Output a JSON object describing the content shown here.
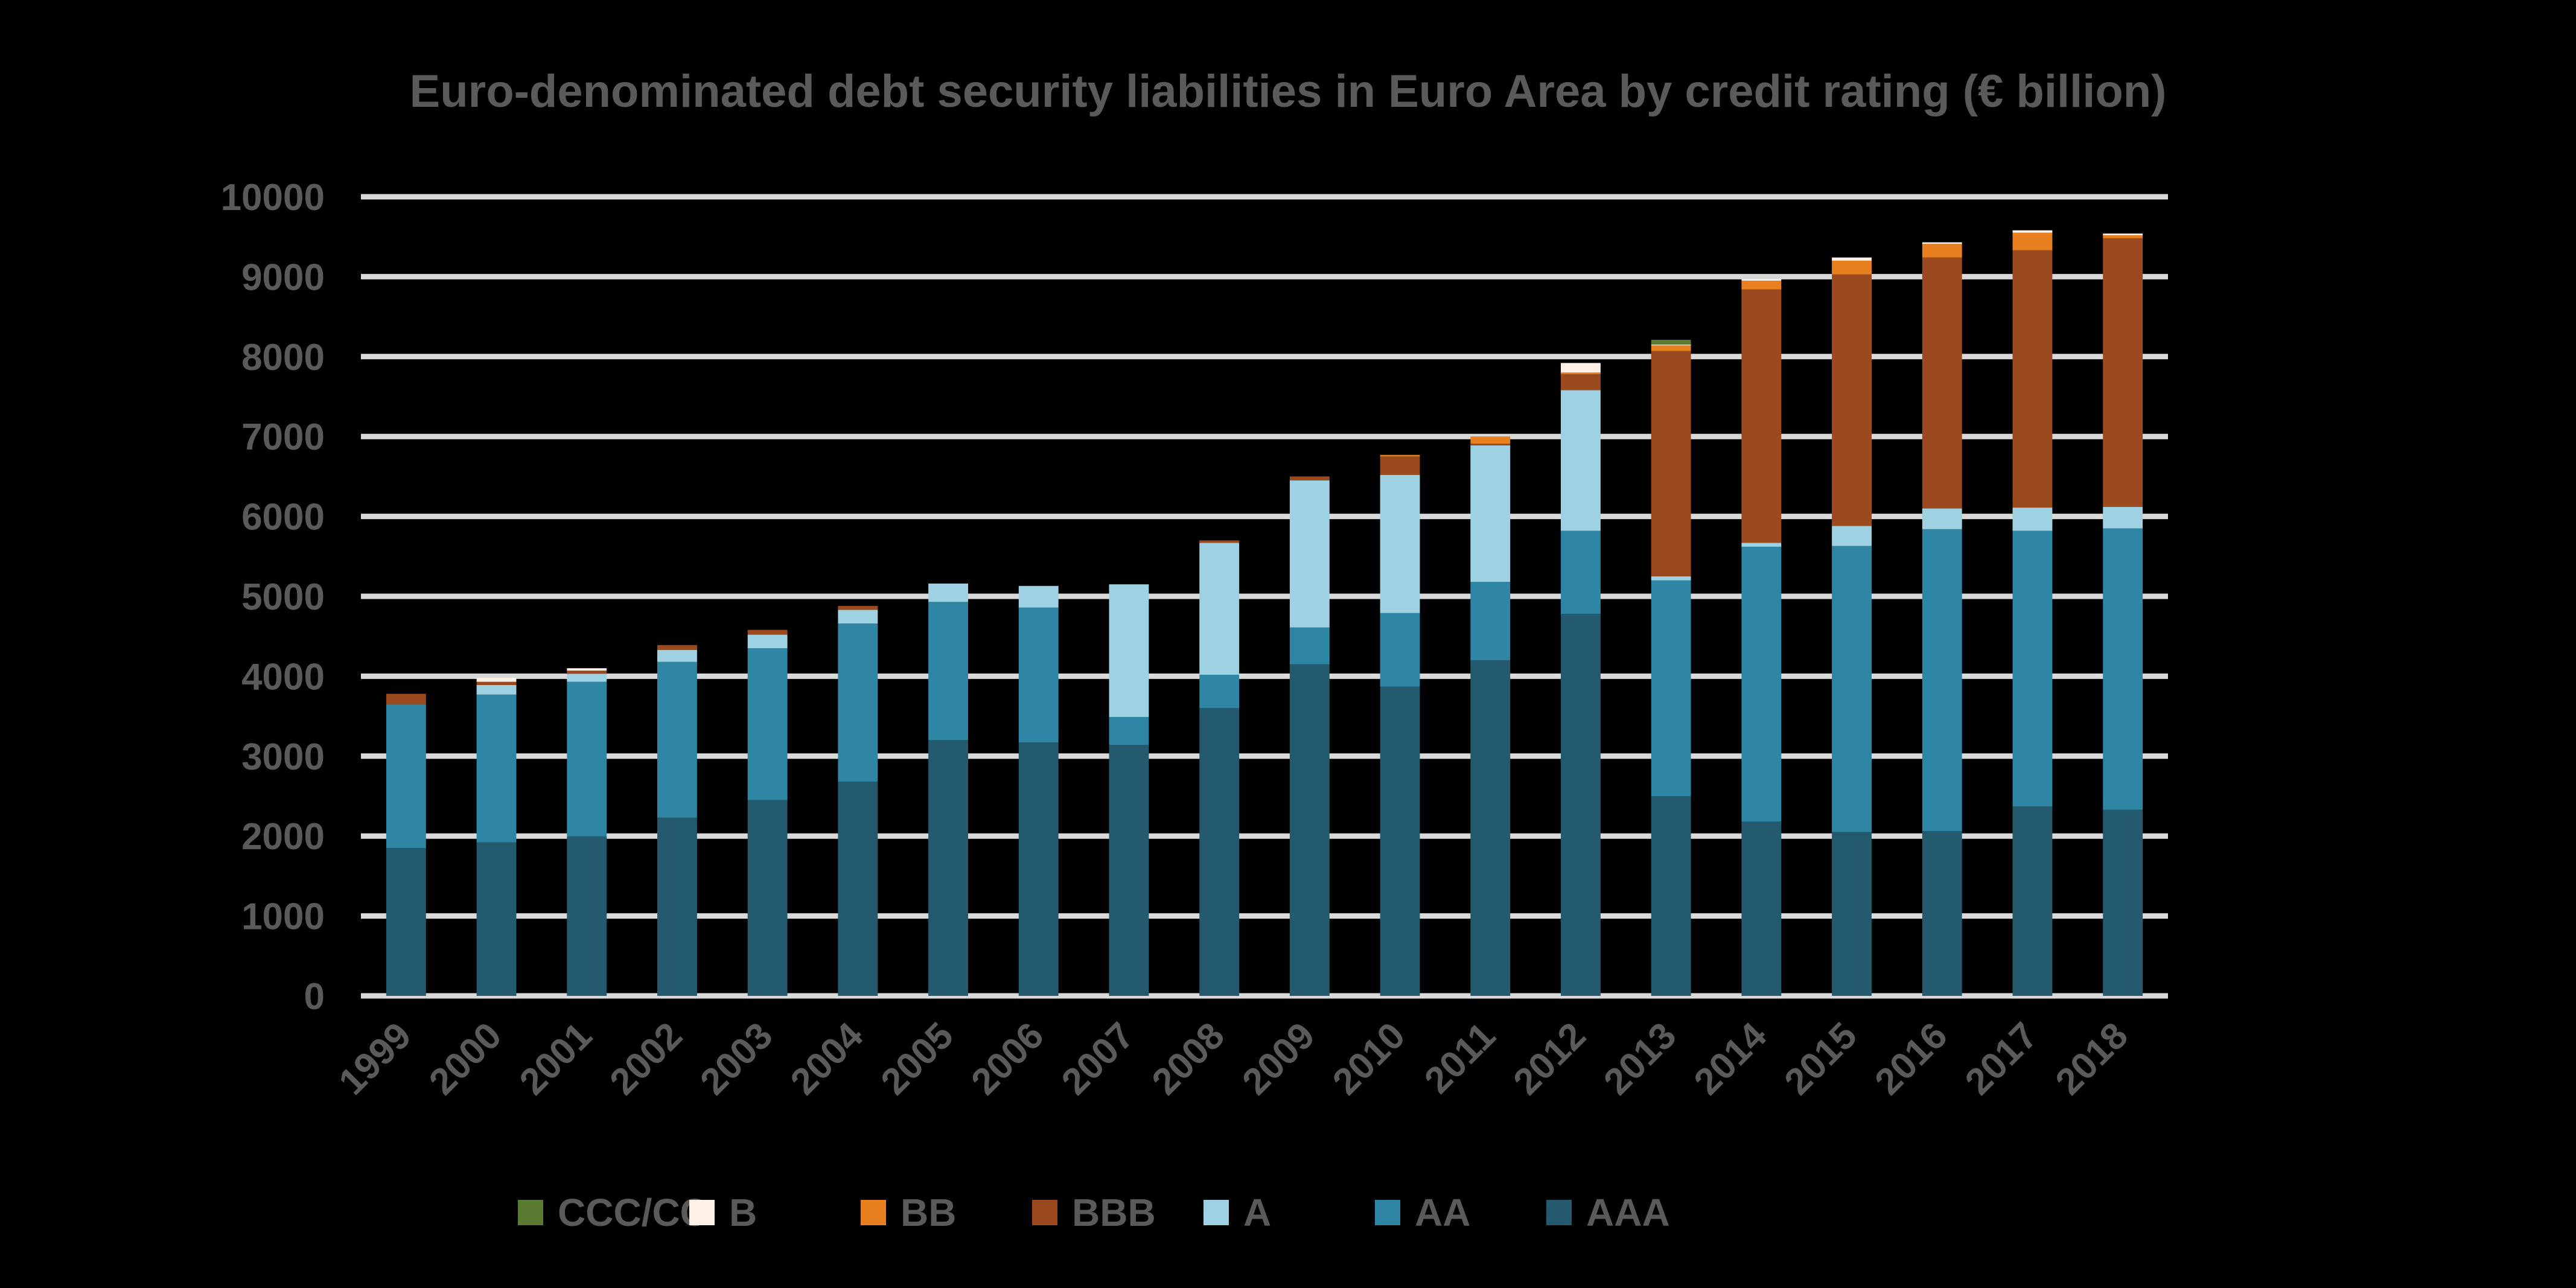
{
  "chart_data": {
    "type": "bar",
    "stacked": true,
    "title": "Euro-denominated debt security liabilities in Euro Area by credit rating (€ billion)",
    "xlabel": "",
    "ylabel": "",
    "ylim": [
      0,
      10000
    ],
    "yticks": [
      "0",
      "1000",
      "2000",
      "3000",
      "4000",
      "5000",
      "6000",
      "7000",
      "8000",
      "9000",
      "10000"
    ],
    "grid": true,
    "legend_position": "bottom",
    "categories": [
      "1999",
      "2000",
      "2001",
      "2002",
      "2003",
      "2004",
      "2005",
      "2006",
      "2007",
      "2008",
      "2009",
      "2010",
      "2011",
      "2012",
      "2013",
      "2014",
      "2015",
      "2016",
      "2017",
      "2018"
    ],
    "series": [
      {
        "name": "AAA",
        "color": "#235a6e",
        "values": [
          1850,
          1920,
          2000,
          2230,
          2450,
          2680,
          3200,
          3170,
          3140,
          3600,
          4150,
          3870,
          4200,
          4780,
          2500,
          2180,
          2050,
          2060,
          2370,
          2330
        ]
      },
      {
        "name": "AA",
        "color": "#2e86a4",
        "values": [
          1800,
          1850,
          1930,
          1950,
          1900,
          1980,
          1730,
          1690,
          350,
          420,
          460,
          920,
          980,
          1040,
          2700,
          3440,
          3580,
          3780,
          3450,
          3520
        ]
      },
      {
        "name": "A",
        "color": "#9ed2e2",
        "values": [
          0,
          120,
          100,
          150,
          170,
          170,
          230,
          270,
          1660,
          1650,
          1840,
          1730,
          1710,
          1760,
          50,
          50,
          250,
          260,
          290,
          270
        ]
      },
      {
        "name": "BBB",
        "color": "#9b4a1f",
        "values": [
          130,
          40,
          40,
          60,
          60,
          50,
          0,
          0,
          0,
          30,
          50,
          230,
          20,
          200,
          2820,
          3170,
          3150,
          3140,
          3220,
          3360
        ]
      },
      {
        "name": "BB",
        "color": "#e8801f",
        "values": [
          0,
          0,
          0,
          0,
          0,
          0,
          0,
          0,
          0,
          0,
          0,
          20,
          90,
          20,
          70,
          110,
          170,
          170,
          220,
          40
        ]
      },
      {
        "name": "B",
        "color": "#fdf0e6",
        "values": [
          0,
          50,
          30,
          0,
          0,
          0,
          0,
          0,
          0,
          0,
          0,
          0,
          0,
          120,
          10,
          20,
          40,
          20,
          30,
          20
        ]
      },
      {
        "name": "CCC/CC",
        "color": "#5a7a32",
        "values": [
          0,
          0,
          0,
          0,
          0,
          0,
          0,
          0,
          0,
          0,
          0,
          0,
          0,
          0,
          60,
          0,
          0,
          0,
          0,
          0
        ]
      }
    ],
    "legend_order": [
      "CCC/CC",
      "B",
      "BB",
      "BBB",
      "A",
      "AA",
      "AAA"
    ]
  },
  "colors": {
    "background": "#000000",
    "gridline": "#d9d9d9",
    "text": "#5a5a5a"
  }
}
